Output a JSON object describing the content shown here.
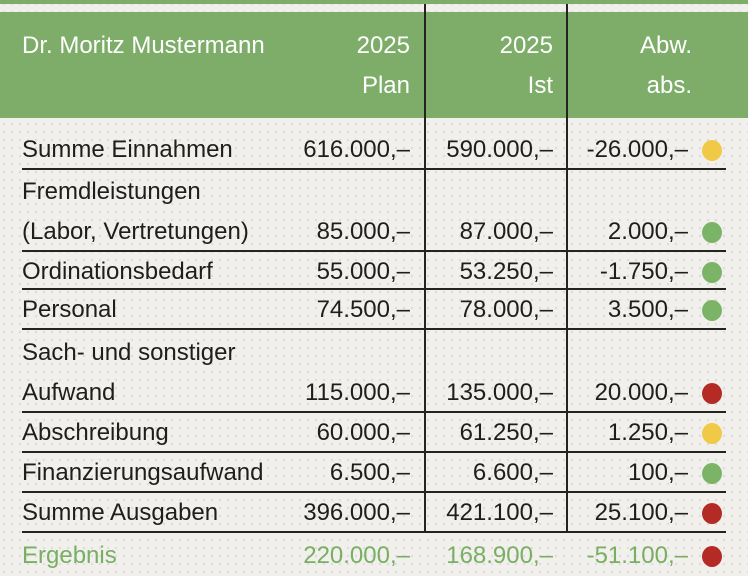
{
  "header": {
    "name": "Dr. Moritz Mustermann",
    "columns": {
      "plan": {
        "line1": "2025",
        "line2": "Plan"
      },
      "ist": {
        "line1": "2025",
        "line2": "Ist"
      },
      "abw": {
        "line1": "Abw.",
        "line2": "abs."
      }
    }
  },
  "rows": [
    {
      "label_line1": "Summe Einnahmen",
      "label_line2": "",
      "plan": "616.000,–",
      "ist": "590.000,–",
      "abw": "-26.000,–",
      "status": "yellow"
    },
    {
      "label_line1": "Fremdleistungen",
      "label_line2": "(Labor, Vertretungen)",
      "plan": "85.000,–",
      "ist": "87.000,–",
      "abw": "2.000,–",
      "status": "green"
    },
    {
      "label_line1": "Ordinationsbedarf",
      "label_line2": "",
      "plan": "55.000,–",
      "ist": "53.250,–",
      "abw": "-1.750,–",
      "status": "green"
    },
    {
      "label_line1": "Personal",
      "label_line2": "",
      "plan": "74.500,–",
      "ist": "78.000,–",
      "abw": "3.500,–",
      "status": "green"
    },
    {
      "label_line1": "Sach- und sonstiger",
      "label_line2": "Aufwand",
      "plan": "115.000,–",
      "ist": "135.000,–",
      "abw": "20.000,–",
      "status": "red"
    },
    {
      "label_line1": "Abschreibung",
      "label_line2": "",
      "plan": "60.000,–",
      "ist": "61.250,–",
      "abw": "1.250,–",
      "status": "yellow"
    },
    {
      "label_line1": "Finanzierungsaufwand",
      "label_line2": "",
      "plan": "6.500,–",
      "ist": "6.600,–",
      "abw": "100,–",
      "status": "green"
    },
    {
      "label_line1": "Summe Ausgaben",
      "label_line2": "",
      "plan": "396.000,–",
      "ist": "421.100,–",
      "abw": "25.100,–",
      "status": "red"
    },
    {
      "label_line1": "Ergebnis",
      "label_line2": "",
      "plan": "220.000,–",
      "ist": "168.900,–",
      "abw": "-51.100,–",
      "status": "red"
    }
  ],
  "colors": {
    "header_green": "#7dad68",
    "result_green": "#79af63",
    "status_green": "#7cb467",
    "status_yellow": "#f0c947",
    "status_red": "#b32b24",
    "bg": "#f1f0ed",
    "bg_dot": "#dfdcd7",
    "ink": "#1e1e1c"
  }
}
